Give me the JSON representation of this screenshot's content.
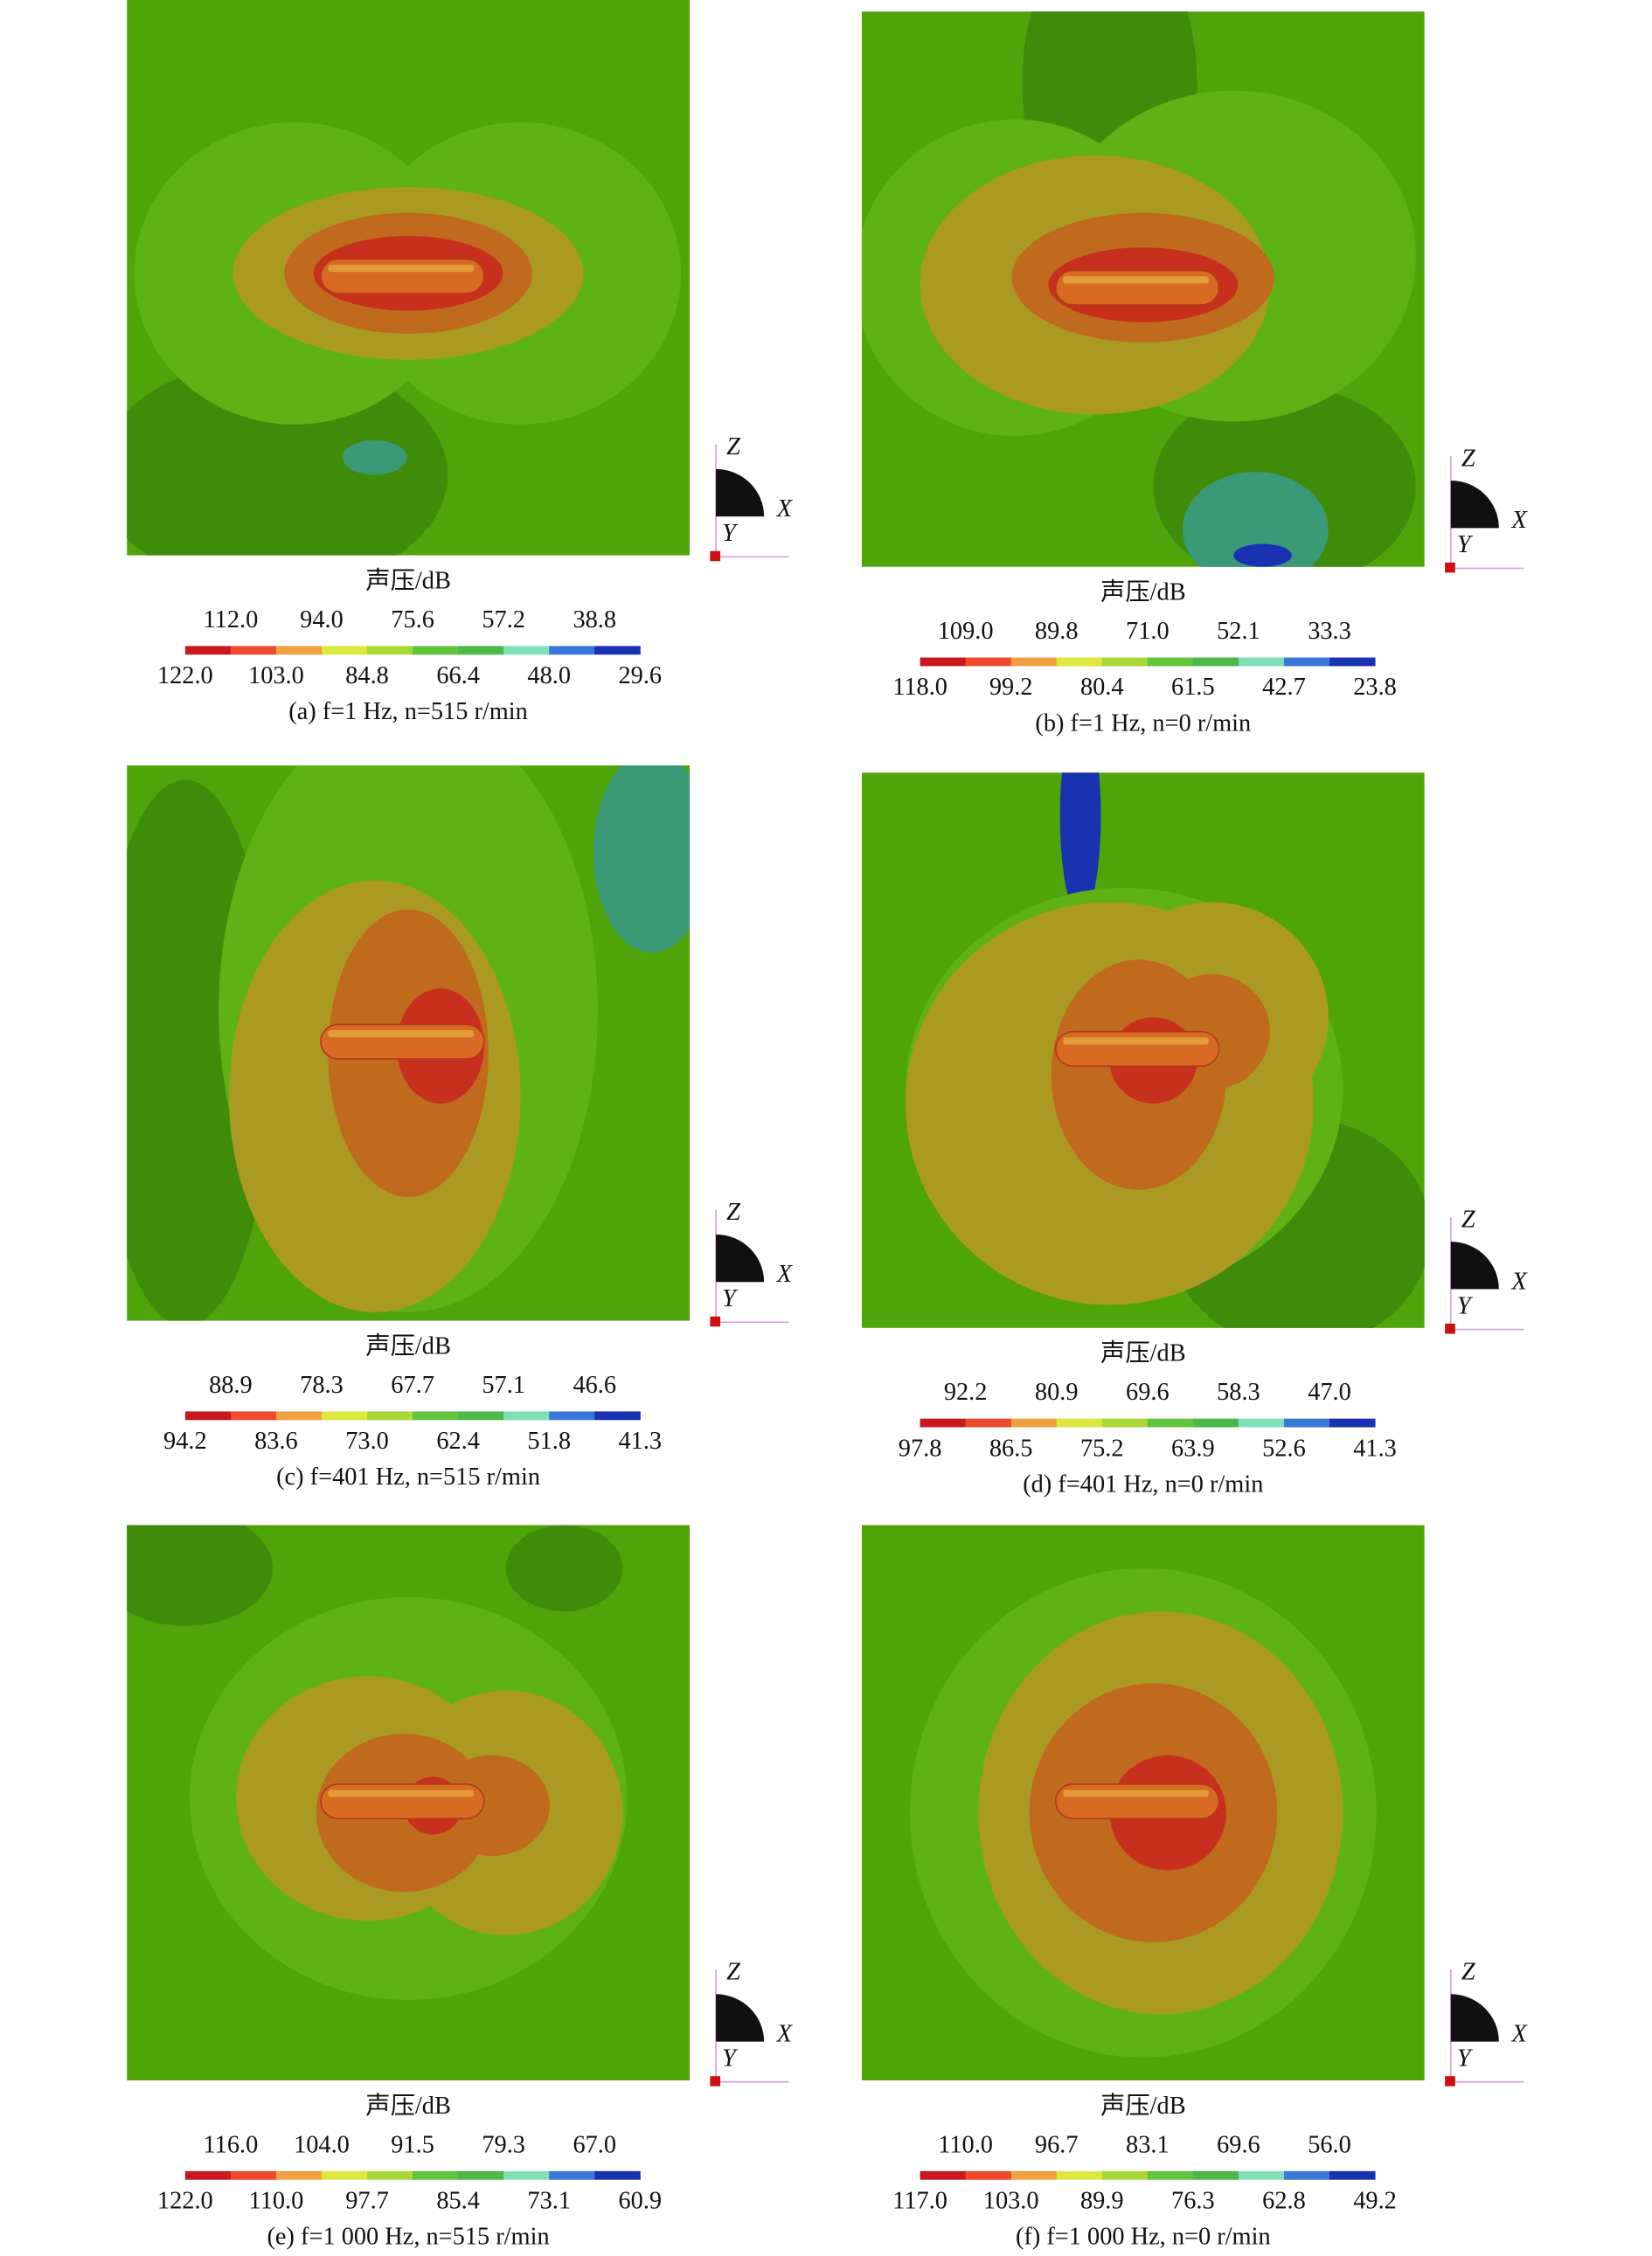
{
  "panels": [
    {
      "legend_title": "声压/dB",
      "top_labels": [
        "112.0",
        "94.0",
        "75.6",
        "57.2",
        "38.8"
      ],
      "bottom_labels": [
        "122.0",
        "103.0",
        "84.8",
        "66.4",
        "48.0",
        "29.6"
      ],
      "caption": "(a) f=1 Hz, n=515 r/min"
    },
    {
      "legend_title": "声压/dB",
      "top_labels": [
        "109.0",
        "89.8",
        "71.0",
        "52.1",
        "33.3"
      ],
      "bottom_labels": [
        "118.0",
        "99.2",
        "80.4",
        "61.5",
        "42.7",
        "23.8"
      ],
      "caption": "(b) f=1 Hz, n=0 r/min"
    },
    {
      "legend_title": "声压/dB",
      "top_labels": [
        "88.9",
        "78.3",
        "67.7",
        "57.1",
        "46.6"
      ],
      "bottom_labels": [
        "94.2",
        "83.6",
        "73.0",
        "62.4",
        "51.8",
        "41.3"
      ],
      "caption": "(c) f=401 Hz, n=515 r/min"
    },
    {
      "legend_title": "声压/dB",
      "top_labels": [
        "92.2",
        "80.9",
        "69.6",
        "58.3",
        "47.0"
      ],
      "bottom_labels": [
        "97.8",
        "86.5",
        "75.2",
        "63.9",
        "52.6",
        "41.3"
      ],
      "caption": "(d) f=401 Hz, n=0 r/min"
    },
    {
      "legend_title": "声压/dB",
      "top_labels": [
        "116.0",
        "104.0",
        "91.5",
        "79.3",
        "67.0"
      ],
      "bottom_labels": [
        "122.0",
        "110.0",
        "97.7",
        "85.4",
        "73.1",
        "60.9"
      ],
      "caption": "(e) f=1 000 Hz, n=515 r/min"
    },
    {
      "legend_title": "声压/dB",
      "top_labels": [
        "110.0",
        "96.7",
        "83.1",
        "69.6",
        "56.0"
      ],
      "bottom_labels": [
        "117.0",
        "103.0",
        "89.9",
        "76.3",
        "62.8",
        "49.2"
      ],
      "caption": "(f) f=1 000 Hz, n=0 r/min"
    }
  ],
  "axes": {
    "z": "Z",
    "x": "X",
    "y": "Y"
  }
}
